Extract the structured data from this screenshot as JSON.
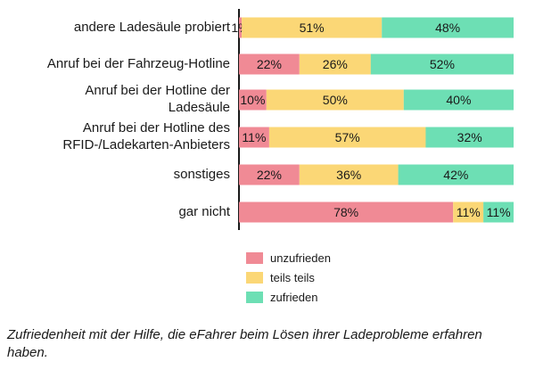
{
  "chart_data": {
    "type": "bar",
    "orientation": "horizontal",
    "stacked": true,
    "percent_scale": [
      0,
      100
    ],
    "categories": [
      "andere Ladesäule probiert",
      "Anruf bei der Fahrzeug-Hotline",
      "Anruf bei der Hotline der Ladesäule",
      "Anruf bei der Hotline des RFID-/Ladekarten-Anbieters",
      "sonstiges",
      "gar nicht"
    ],
    "category_lines": [
      [
        "andere Ladesäule probiert"
      ],
      [
        "Anruf bei der Fahrzeug-Hotline"
      ],
      [
        "Anruf bei der Hotline der",
        "Ladesäule"
      ],
      [
        "Anruf bei der Hotline des",
        "RFID-/Ladekarten-Anbieters"
      ],
      [
        "sonstiges"
      ],
      [
        "gar nicht"
      ]
    ],
    "series": [
      {
        "name": "unzufrieden",
        "color": "#f08a95",
        "values": [
          1,
          22,
          10,
          11,
          22,
          78
        ]
      },
      {
        "name": "teils teils",
        "color": "#fbd776",
        "values": [
          51,
          26,
          50,
          57,
          36,
          11
        ]
      },
      {
        "name": "zufrieden",
        "color": "#6ddfb4",
        "values": [
          48,
          52,
          40,
          32,
          42,
          11
        ]
      }
    ],
    "legend_position": "bottom-center",
    "caption": "Zufriedenheit mit der Hilfe, die eFahrer beim Lösen ihrer Ladeprobleme erfahren haben."
  }
}
